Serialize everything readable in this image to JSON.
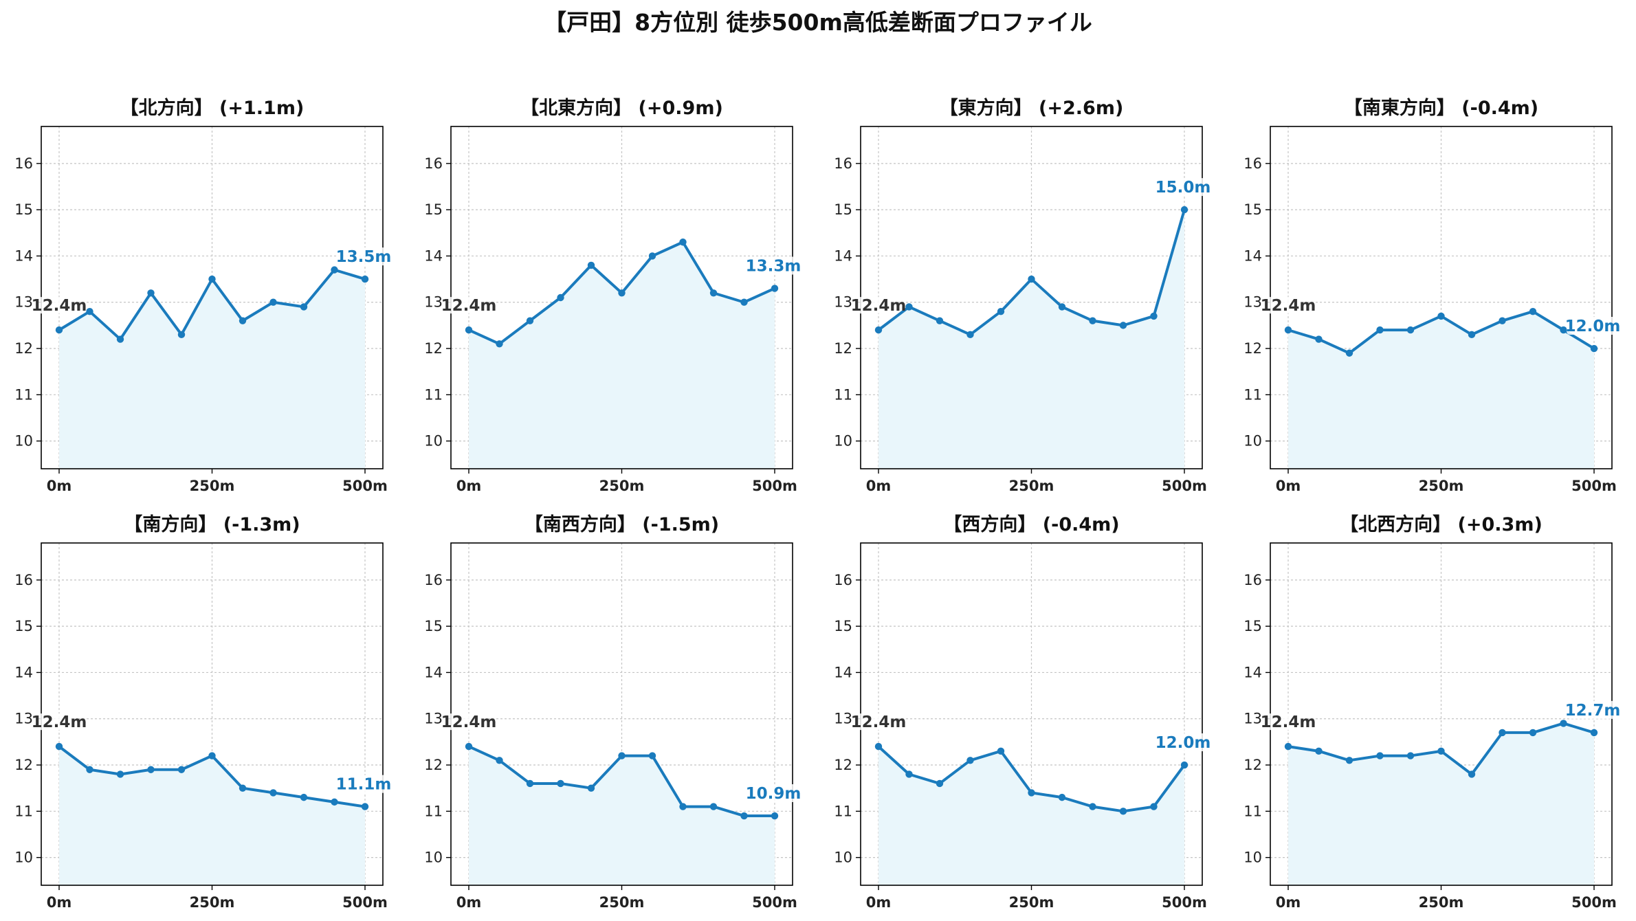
{
  "title": "【戸田】8方位別 徒歩500m高低差断面プロファイル",
  "colors": {
    "line": "#1a7bbd",
    "fill": "#e9f6fb",
    "start_label": "#333333",
    "end_label": "#1a7bbd",
    "grid": "#c4c4c4",
    "axis": "#000000"
  },
  "chart_data": [
    {
      "type": "area",
      "title": "【北方向】 (+1.1m)",
      "x": [
        0,
        50,
        100,
        150,
        200,
        250,
        300,
        350,
        400,
        450,
        500
      ],
      "xticks": [
        "0m",
        "250m",
        "500m"
      ],
      "ylim": [
        9.4,
        16.8
      ],
      "yticks": [
        10,
        11,
        12,
        13,
        14,
        15,
        16
      ],
      "grid": true,
      "series": [
        {
          "values": [
            12.4,
            12.8,
            12.2,
            13.2,
            12.3,
            13.5,
            12.6,
            13.0,
            12.9,
            13.7,
            13.5
          ]
        }
      ],
      "annotations": {
        "start": "12.4m",
        "end": "13.5m"
      }
    },
    {
      "type": "area",
      "title": "【北東方向】 (+0.9m)",
      "x": [
        0,
        50,
        100,
        150,
        200,
        250,
        300,
        350,
        400,
        450,
        500
      ],
      "xticks": [
        "0m",
        "250m",
        "500m"
      ],
      "ylim": [
        9.4,
        16.8
      ],
      "yticks": [
        10,
        11,
        12,
        13,
        14,
        15,
        16
      ],
      "grid": true,
      "series": [
        {
          "values": [
            12.4,
            12.1,
            12.6,
            13.1,
            13.8,
            13.2,
            14.0,
            14.3,
            13.2,
            13.0,
            13.3
          ]
        }
      ],
      "annotations": {
        "start": "12.4m",
        "end": "13.3m"
      }
    },
    {
      "type": "area",
      "title": "【東方向】 (+2.6m)",
      "x": [
        0,
        50,
        100,
        150,
        200,
        250,
        300,
        350,
        400,
        450,
        500
      ],
      "xticks": [
        "0m",
        "250m",
        "500m"
      ],
      "ylim": [
        9.4,
        16.8
      ],
      "yticks": [
        10,
        11,
        12,
        13,
        14,
        15,
        16
      ],
      "grid": true,
      "series": [
        {
          "values": [
            12.4,
            12.9,
            12.6,
            12.3,
            12.8,
            13.5,
            12.9,
            12.6,
            12.5,
            12.7,
            15.0
          ]
        }
      ],
      "annotations": {
        "start": "12.4m",
        "end": "15.0m"
      }
    },
    {
      "type": "area",
      "title": "【南東方向】 (-0.4m)",
      "x": [
        0,
        50,
        100,
        150,
        200,
        250,
        300,
        350,
        400,
        450,
        500
      ],
      "xticks": [
        "0m",
        "250m",
        "500m"
      ],
      "ylim": [
        9.4,
        16.8
      ],
      "yticks": [
        10,
        11,
        12,
        13,
        14,
        15,
        16
      ],
      "grid": true,
      "series": [
        {
          "values": [
            12.4,
            12.2,
            11.9,
            12.4,
            12.4,
            12.7,
            12.3,
            12.6,
            12.8,
            12.4,
            12.0
          ]
        }
      ],
      "annotations": {
        "start": "12.4m",
        "end": "12.0m"
      }
    },
    {
      "type": "area",
      "title": "【南方向】 (-1.3m)",
      "x": [
        0,
        50,
        100,
        150,
        200,
        250,
        300,
        350,
        400,
        450,
        500
      ],
      "xticks": [
        "0m",
        "250m",
        "500m"
      ],
      "ylim": [
        9.4,
        16.8
      ],
      "yticks": [
        10,
        11,
        12,
        13,
        14,
        15,
        16
      ],
      "grid": true,
      "series": [
        {
          "values": [
            12.4,
            11.9,
            11.8,
            11.9,
            11.9,
            12.2,
            11.5,
            11.4,
            11.3,
            11.2,
            11.1
          ]
        }
      ],
      "annotations": {
        "start": "12.4m",
        "end": "11.1m"
      }
    },
    {
      "type": "area",
      "title": "【南西方向】 (-1.5m)",
      "x": [
        0,
        50,
        100,
        150,
        200,
        250,
        300,
        350,
        400,
        450,
        500
      ],
      "xticks": [
        "0m",
        "250m",
        "500m"
      ],
      "ylim": [
        9.4,
        16.8
      ],
      "yticks": [
        10,
        11,
        12,
        13,
        14,
        15,
        16
      ],
      "grid": true,
      "series": [
        {
          "values": [
            12.4,
            12.1,
            11.6,
            11.6,
            11.5,
            12.2,
            12.2,
            11.1,
            11.1,
            10.9,
            10.9
          ]
        }
      ],
      "annotations": {
        "start": "12.4m",
        "end": "10.9m"
      }
    },
    {
      "type": "area",
      "title": "【西方向】 (-0.4m)",
      "x": [
        0,
        50,
        100,
        150,
        200,
        250,
        300,
        350,
        400,
        450,
        500
      ],
      "xticks": [
        "0m",
        "250m",
        "500m"
      ],
      "ylim": [
        9.4,
        16.8
      ],
      "yticks": [
        10,
        11,
        12,
        13,
        14,
        15,
        16
      ],
      "grid": true,
      "series": [
        {
          "values": [
            12.4,
            11.8,
            11.6,
            12.1,
            12.3,
            11.4,
            11.3,
            11.1,
            11.0,
            11.1,
            12.0
          ]
        }
      ],
      "annotations": {
        "start": "12.4m",
        "end": "12.0m"
      }
    },
    {
      "type": "area",
      "title": "【北西方向】 (+0.3m)",
      "x": [
        0,
        50,
        100,
        150,
        200,
        250,
        300,
        350,
        400,
        450,
        500
      ],
      "xticks": [
        "0m",
        "250m",
        "500m"
      ],
      "ylim": [
        9.4,
        16.8
      ],
      "yticks": [
        10,
        11,
        12,
        13,
        14,
        15,
        16
      ],
      "grid": true,
      "series": [
        {
          "values": [
            12.4,
            12.3,
            12.1,
            12.2,
            12.2,
            12.3,
            11.8,
            12.7,
            12.7,
            12.9,
            12.7
          ]
        }
      ],
      "annotations": {
        "start": "12.4m",
        "end": "12.7m"
      }
    }
  ]
}
